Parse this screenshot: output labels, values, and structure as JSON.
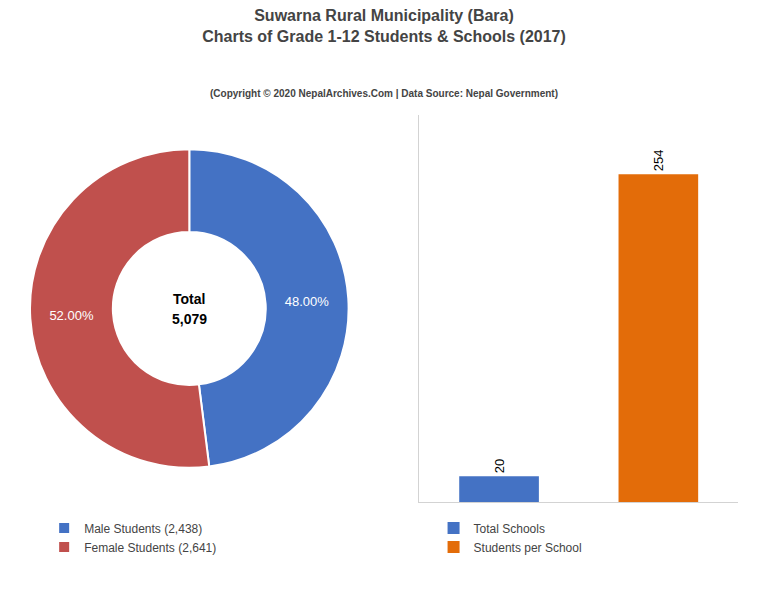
{
  "title": "Suwarna Rural Municipality (Bara)\nCharts of Grade 1-12 Students & Schools (2017)",
  "subtitle": "(Copyright © 2020 NepalArchives.Com | Data Source: Nepal Government)",
  "chart_data": [
    {
      "type": "pie",
      "categories": [
        "Male Students (2,438)",
        "Female Students (2,641)"
      ],
      "values": [
        48.0,
        52.0
      ],
      "value_labels": [
        "48.00%",
        "52.00%"
      ],
      "colors": [
        "#4472C4",
        "#C0504D"
      ],
      "annotations": [
        "Total",
        "5,079"
      ],
      "data_labels": true,
      "legend": "lower left"
    },
    {
      "type": "bar",
      "categories": [
        "Total Schools",
        "Students per School"
      ],
      "values": [
        20,
        254
      ],
      "colors": [
        "#4472C4",
        "#E36C09"
      ],
      "ylim": [
        0,
        300
      ],
      "data_labels": true,
      "tick_labels": false,
      "grid": false,
      "legend": "lower left"
    }
  ]
}
